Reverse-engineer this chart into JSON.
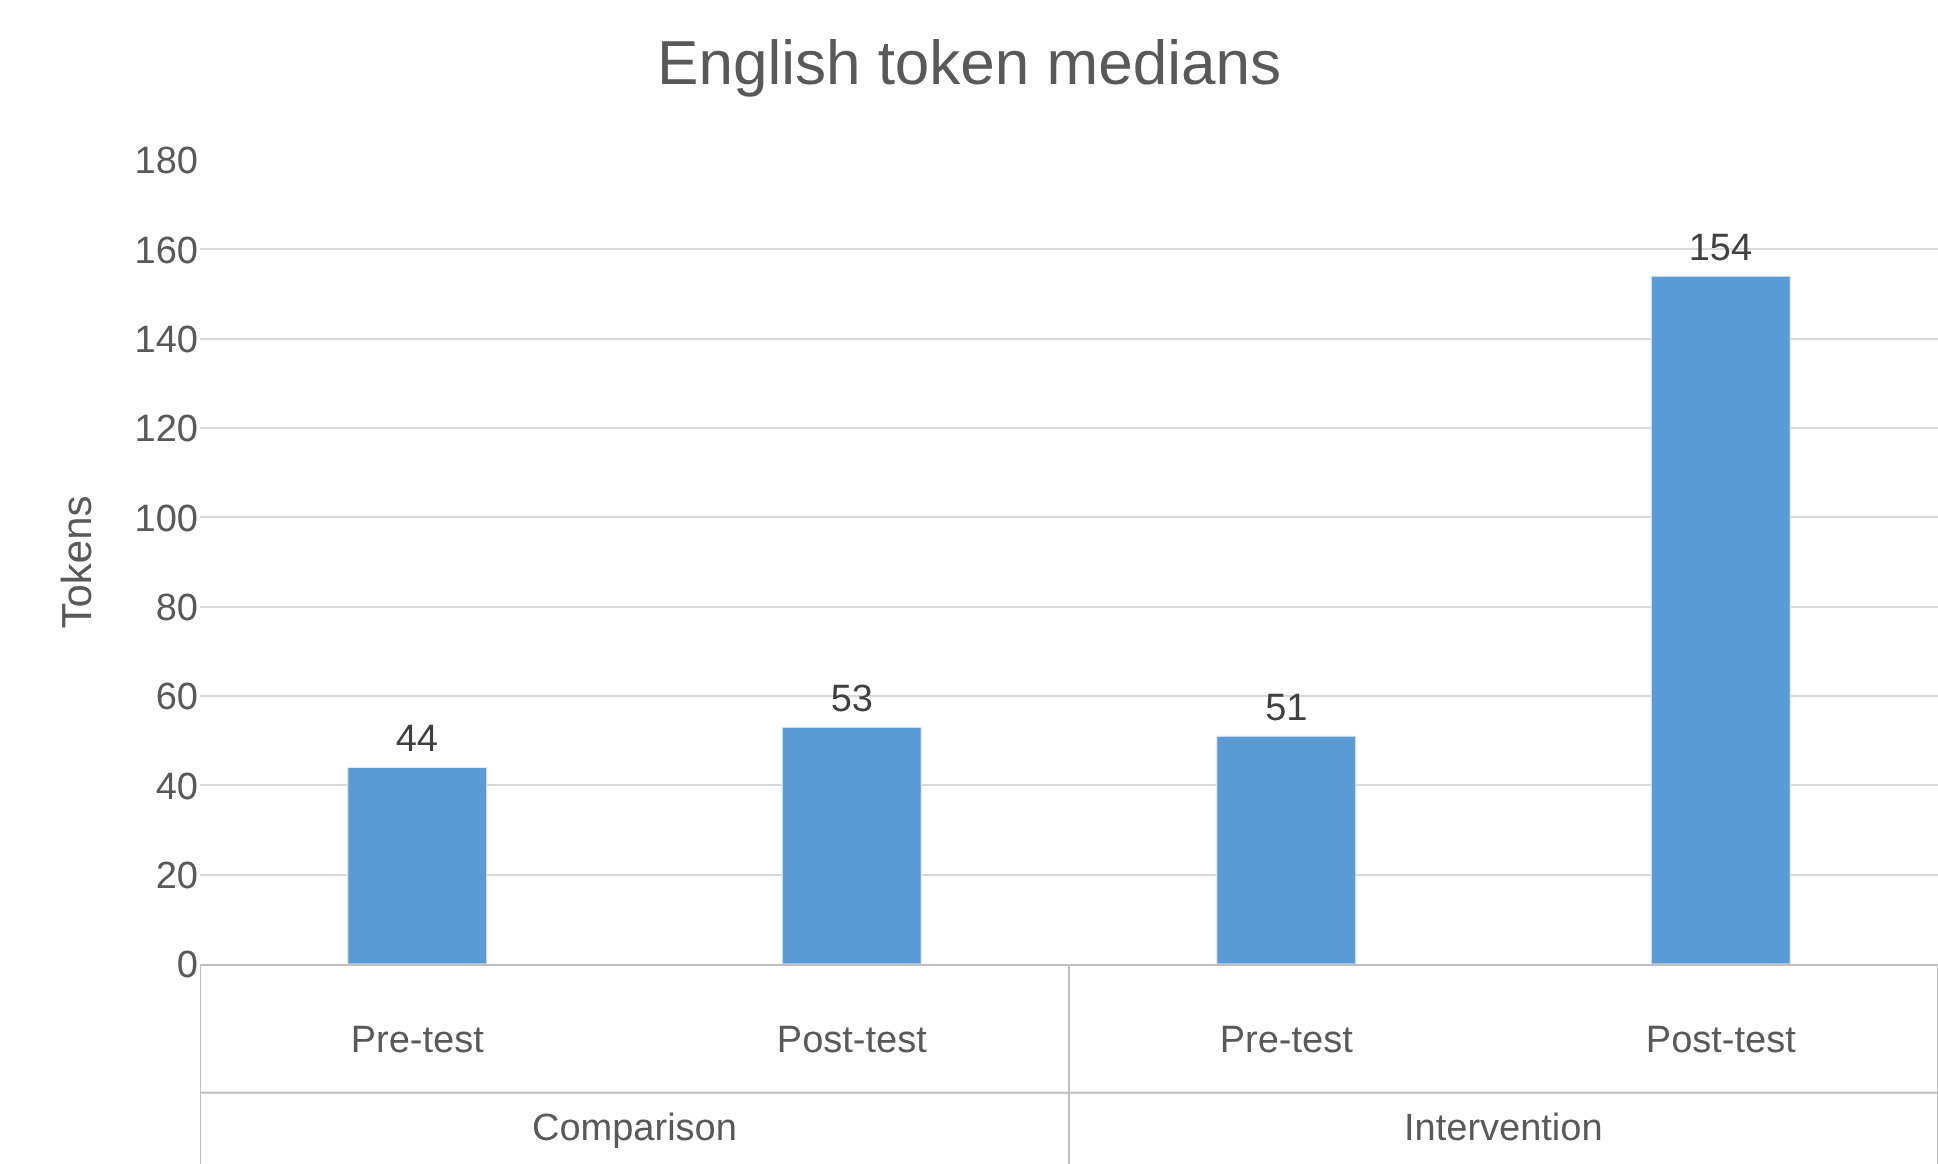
{
  "chart_data": {
    "type": "bar",
    "title": "English token medians",
    "ylabel": "Tokens",
    "categories": [
      "Pre-test",
      "Post-test",
      "Pre-test",
      "Post-test"
    ],
    "values": [
      44,
      53,
      51,
      154
    ],
    "color": "#5b9bd5",
    "ylim": [
      0,
      180
    ],
    "yticks": [
      0,
      20,
      40,
      60,
      80,
      100,
      120,
      140,
      160,
      180
    ],
    "grid": "y",
    "data_labels": true,
    "legend": false,
    "annotations": [
      "Comparison",
      "Intervention"
    ]
  }
}
